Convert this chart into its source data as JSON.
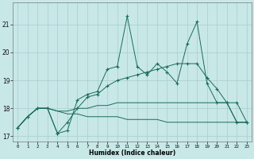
{
  "xlabel": "Humidex (Indice chaleur)",
  "background_color": "#c8e8e8",
  "grid_color": "#a8cccc",
  "line_color": "#1a6b5a",
  "x": [
    0,
    1,
    2,
    3,
    4,
    5,
    6,
    7,
    8,
    9,
    10,
    11,
    12,
    13,
    14,
    15,
    16,
    17,
    18,
    19,
    20,
    21,
    22,
    23
  ],
  "line1": [
    17.3,
    17.7,
    18.0,
    18.0,
    17.1,
    17.2,
    18.3,
    18.5,
    18.6,
    19.4,
    19.5,
    21.3,
    19.5,
    19.2,
    19.6,
    19.3,
    18.9,
    20.3,
    21.1,
    18.9,
    18.2,
    18.2,
    17.5,
    17.5
  ],
  "line2": [
    17.3,
    17.7,
    18.0,
    18.0,
    17.1,
    17.5,
    18.0,
    18.4,
    18.5,
    18.8,
    19.0,
    19.1,
    19.2,
    19.3,
    19.4,
    19.5,
    19.6,
    19.6,
    19.6,
    19.1,
    18.7,
    18.2,
    18.2,
    17.5
  ],
  "line3": [
    17.3,
    17.7,
    18.0,
    18.0,
    17.9,
    17.9,
    18.0,
    18.0,
    18.1,
    18.1,
    18.2,
    18.2,
    18.2,
    18.2,
    18.2,
    18.2,
    18.2,
    18.2,
    18.2,
    18.2,
    18.2,
    18.2,
    17.5,
    17.5
  ],
  "line4": [
    17.3,
    17.7,
    18.0,
    18.0,
    17.9,
    17.8,
    17.8,
    17.7,
    17.7,
    17.7,
    17.7,
    17.6,
    17.6,
    17.6,
    17.6,
    17.5,
    17.5,
    17.5,
    17.5,
    17.5,
    17.5,
    17.5,
    17.5,
    17.5
  ],
  "ylim": [
    16.8,
    21.8
  ],
  "yticks": [
    17,
    18,
    19,
    20,
    21
  ],
  "xticks": [
    0,
    1,
    2,
    3,
    4,
    5,
    6,
    7,
    8,
    9,
    10,
    11,
    12,
    13,
    14,
    15,
    16,
    17,
    18,
    19,
    20,
    21,
    22,
    23
  ]
}
